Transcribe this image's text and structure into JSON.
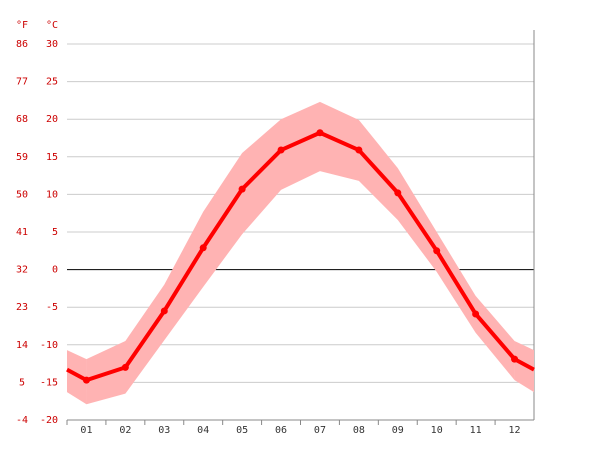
{
  "chart_data": {
    "type": "line",
    "ylabel": "°C",
    "y2label": "°F",
    "categories": [
      "01",
      "02",
      "03",
      "04",
      "05",
      "06",
      "07",
      "08",
      "09",
      "10",
      "11",
      "12"
    ],
    "series": [
      {
        "color": "#ff0000",
        "values": [
          -14.7,
          -13.0,
          -5.5,
          2.9,
          10.7,
          15.9,
          18.2,
          15.9,
          10.2,
          2.5,
          -5.9,
          -11.9
        ]
      }
    ],
    "band": {
      "color": "#ffb3b3",
      "high": [
        -11.9,
        -9.5,
        -2.0,
        7.7,
        15.5,
        20.0,
        22.3,
        19.9,
        13.5,
        5.0,
        -3.5,
        -9.5
      ],
      "low": [
        -17.9,
        -16.5,
        -9.4,
        -2.3,
        4.7,
        10.6,
        13.1,
        11.8,
        6.6,
        -0.3,
        -8.4,
        -14.7
      ]
    },
    "ylim": [
      -20,
      30
    ],
    "yticks": [
      30,
      25,
      20,
      15,
      10,
      5,
      0,
      -5,
      -10,
      -15,
      -20
    ],
    "y2lim": [
      -4,
      86
    ],
    "y2ticks": [
      86,
      77,
      68,
      59,
      50,
      41,
      32,
      23,
      14,
      5,
      -4
    ],
    "grid": true
  }
}
